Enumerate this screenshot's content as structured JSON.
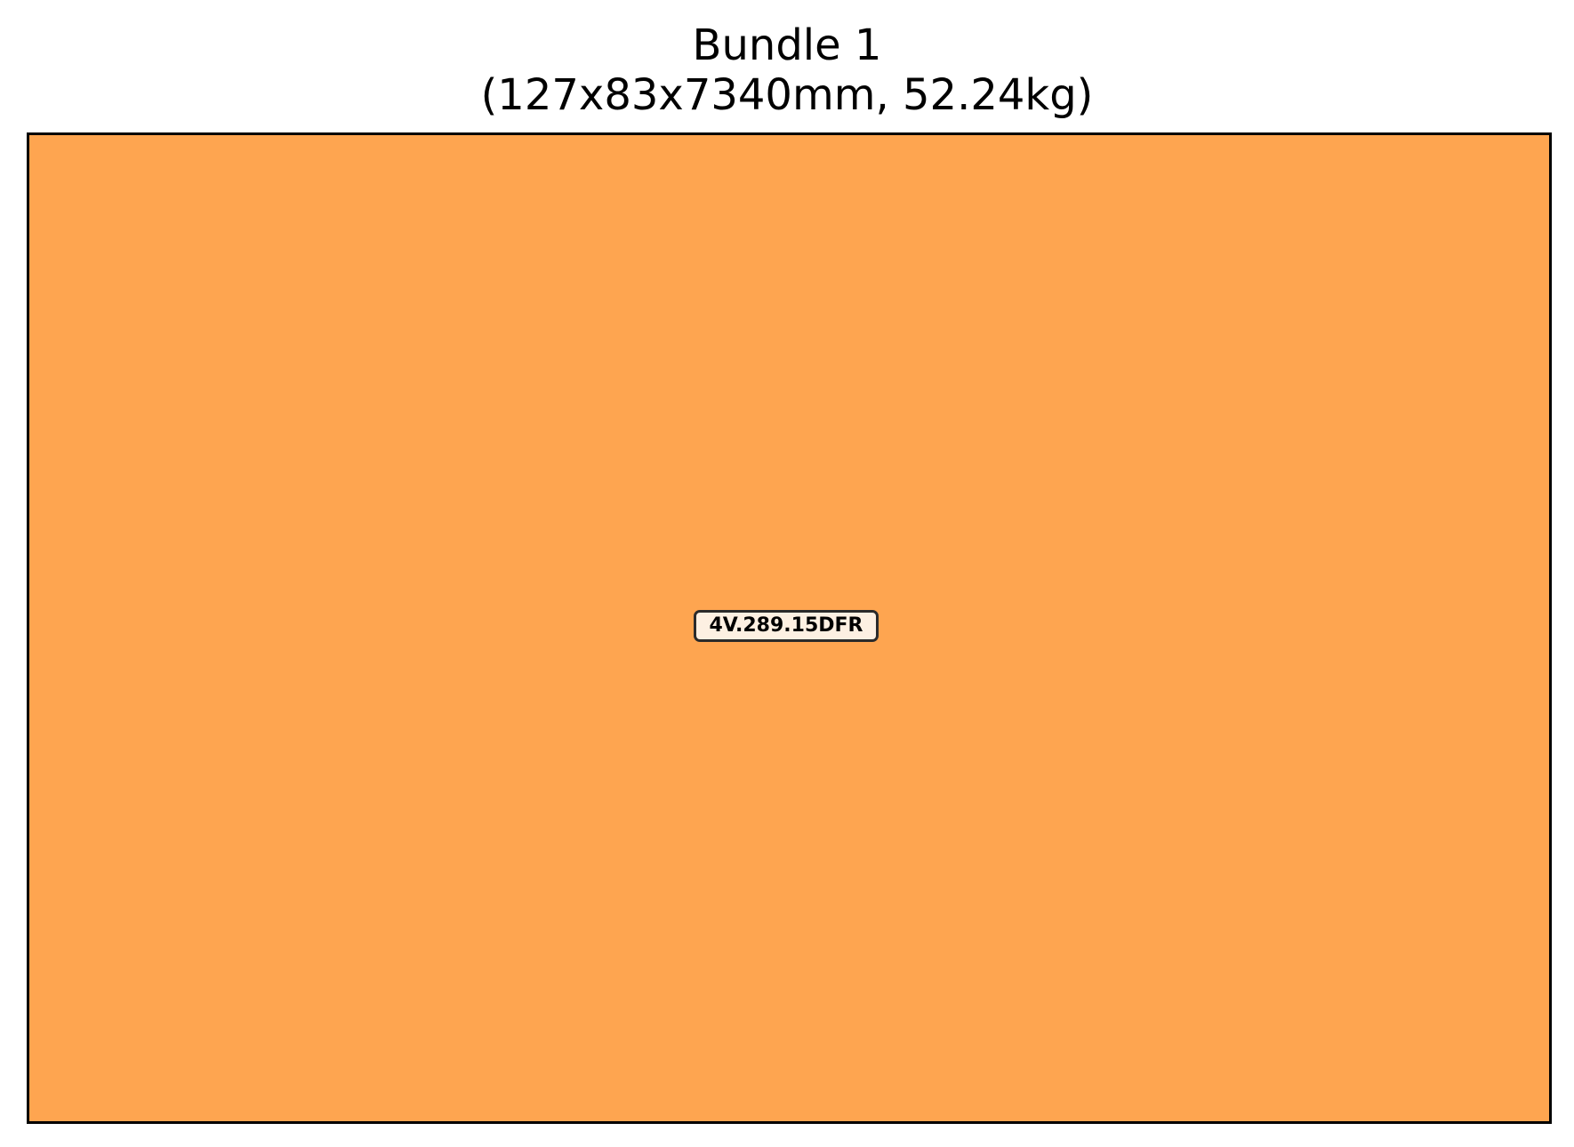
{
  "title": {
    "line1": "Bundle 1",
    "line2": "(127x83x7340mm, 52.24kg)"
  },
  "bundle": {
    "fill_color": "#fea550",
    "border_color": "#000000",
    "items": [
      {
        "label": "4V.289.15DFR",
        "label_bg_color": "#fdf0e2"
      }
    ]
  }
}
